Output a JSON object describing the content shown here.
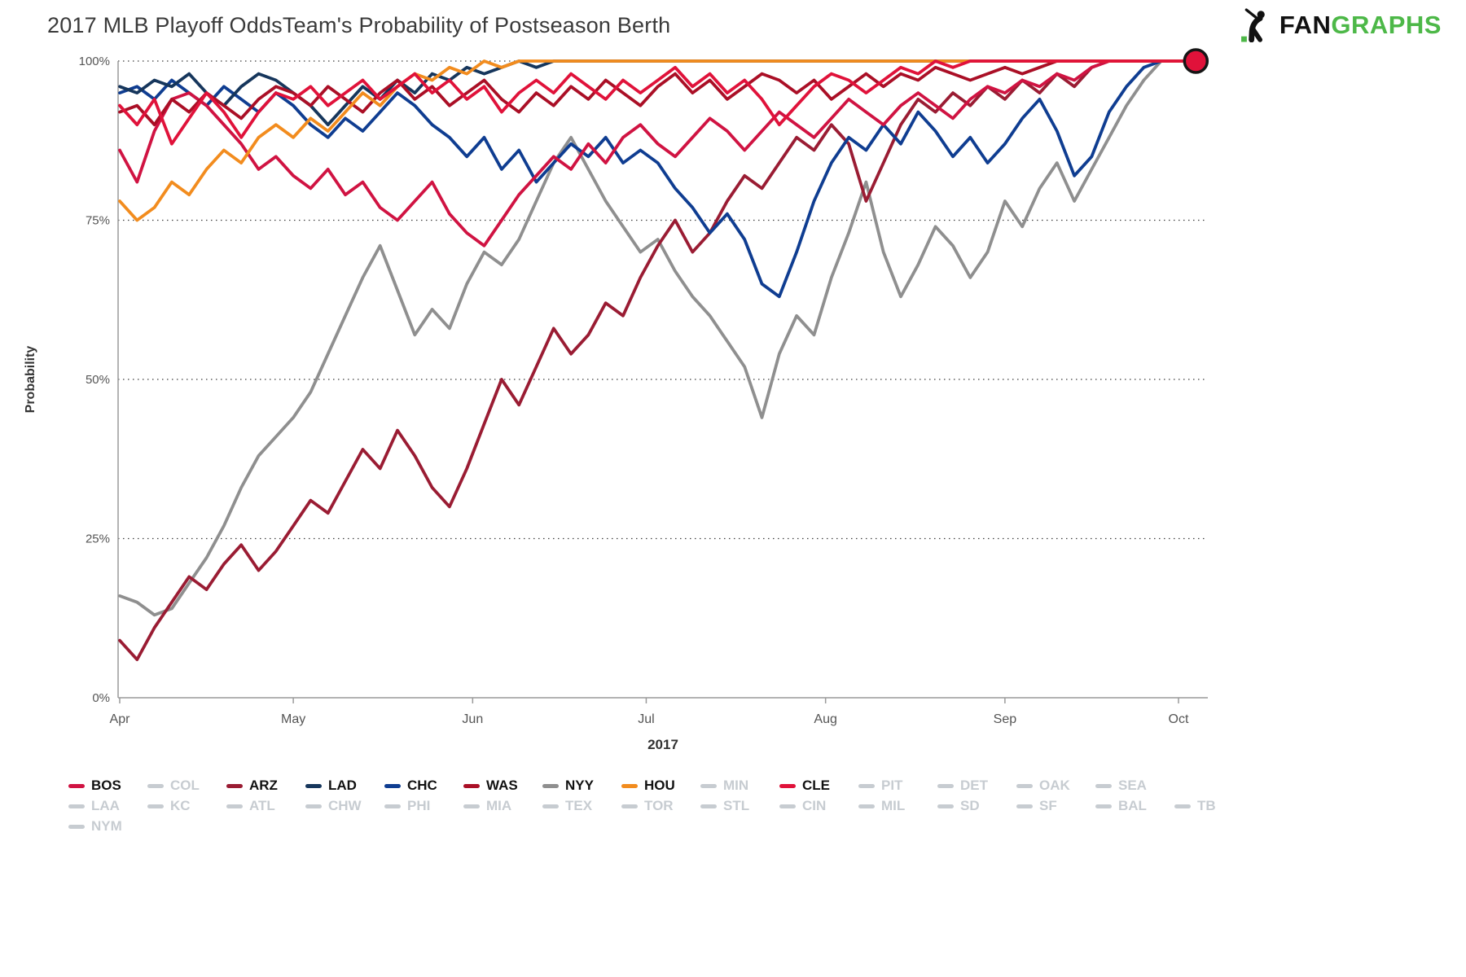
{
  "header": {
    "logo": {
      "fan": "FAN",
      "graphs": "GRAPHS",
      "icon": "fangraphs-batter-icon",
      "colors": {
        "fan": "#111111",
        "graphs": "#4db848"
      }
    }
  },
  "chart_data": {
    "type": "line",
    "title": "2017 MLB Playoff Odds",
    "subtitle": "Team's Probability of Postseason Berth",
    "title_display": "2017 MLB Playoff OddsTeam's Probability of Postseason Berth",
    "xlabel": "2017",
    "ylabel": "Probability",
    "ylim": [
      0,
      100
    ],
    "grid": "dotted-horizontal",
    "legend_position": "bottom",
    "x_unit": "days since Apr 1",
    "sample_interval_days": 3,
    "y_ticks": [
      {
        "value": 0,
        "label": "0%"
      },
      {
        "value": 25,
        "label": "25%"
      },
      {
        "value": 50,
        "label": "50%"
      },
      {
        "value": 75,
        "label": "75%"
      },
      {
        "value": 100,
        "label": "100%"
      }
    ],
    "x_ticks": [
      {
        "day": 0,
        "label": "Apr"
      },
      {
        "day": 30,
        "label": "May"
      },
      {
        "day": 61,
        "label": "Jun"
      },
      {
        "day": 91,
        "label": "Jul"
      },
      {
        "day": 122,
        "label": "Aug"
      },
      {
        "day": 153,
        "label": "Sep"
      },
      {
        "day": 183,
        "label": "Oct"
      }
    ],
    "series": [
      {
        "name": "NYY",
        "color": "#8f8f8f",
        "values": [
          16,
          15,
          13,
          14,
          18,
          22,
          27,
          33,
          38,
          41,
          44,
          48,
          54,
          60,
          66,
          71,
          64,
          57,
          61,
          58,
          65,
          70,
          68,
          72,
          78,
          84,
          88,
          83,
          78,
          74,
          70,
          72,
          67,
          63,
          60,
          56,
          52,
          44,
          54,
          60,
          57,
          66,
          73,
          81,
          70,
          63,
          68,
          74,
          71,
          66,
          70,
          78,
          74,
          80,
          84,
          78,
          83,
          88,
          93,
          97,
          100,
          100,
          100
        ]
      },
      {
        "name": "ARZ",
        "color": "#9a1c33",
        "values": [
          9,
          6,
          11,
          15,
          19,
          17,
          21,
          24,
          20,
          23,
          27,
          31,
          29,
          34,
          39,
          36,
          42,
          38,
          33,
          30,
          36,
          43,
          50,
          46,
          52,
          58,
          54,
          57,
          62,
          60,
          66,
          71,
          75,
          70,
          73,
          78,
          82,
          80,
          84,
          88,
          86,
          90,
          87,
          78,
          84,
          90,
          94,
          92,
          95,
          93,
          96,
          94,
          97,
          95,
          98,
          96,
          99,
          100,
          100,
          100,
          100,
          100,
          100
        ]
      },
      {
        "name": "CHC",
        "color": "#0f3d91",
        "values": [
          95,
          96,
          94,
          97,
          95,
          93,
          96,
          94,
          92,
          95,
          93,
          90,
          88,
          91,
          89,
          92,
          95,
          93,
          90,
          88,
          85,
          88,
          83,
          86,
          81,
          84,
          87,
          85,
          88,
          84,
          86,
          84,
          80,
          77,
          73,
          76,
          72,
          65,
          63,
          70,
          78,
          84,
          88,
          86,
          90,
          87,
          92,
          89,
          85,
          88,
          84,
          87,
          91,
          94,
          89,
          82,
          85,
          92,
          96,
          99,
          100,
          100,
          100
        ]
      },
      {
        "name": "LAD",
        "color": "#16365c",
        "values": [
          96,
          95,
          97,
          96,
          98,
          95,
          93,
          96,
          98,
          97,
          95,
          93,
          90,
          93,
          96,
          94,
          97,
          95,
          98,
          97,
          99,
          98,
          99,
          100,
          99,
          100,
          100,
          100,
          100,
          100,
          100,
          100,
          100,
          100,
          100,
          100,
          100,
          100,
          100,
          100,
          100,
          100,
          100,
          100,
          100,
          100,
          100,
          100,
          100,
          100,
          100,
          100,
          100,
          100,
          100,
          100,
          100,
          100,
          100,
          100,
          100,
          100,
          100
        ]
      },
      {
        "name": "BOS",
        "color": "#d01342",
        "values": [
          86,
          81,
          89,
          94,
          95,
          93,
          90,
          87,
          83,
          85,
          82,
          80,
          83,
          79,
          81,
          77,
          75,
          78,
          81,
          76,
          73,
          71,
          75,
          79,
          82,
          85,
          83,
          87,
          84,
          88,
          90,
          87,
          85,
          88,
          91,
          89,
          86,
          89,
          92,
          90,
          88,
          91,
          94,
          92,
          90,
          93,
          95,
          93,
          91,
          94,
          96,
          95,
          97,
          96,
          98,
          97,
          99,
          100,
          100,
          100,
          100,
          100,
          100
        ]
      },
      {
        "name": "WAS",
        "color": "#aa0f26",
        "values": [
          92,
          93,
          90,
          94,
          92,
          95,
          93,
          91,
          94,
          96,
          95,
          93,
          96,
          94,
          92,
          95,
          97,
          94,
          96,
          93,
          95,
          97,
          94,
          92,
          95,
          93,
          96,
          94,
          97,
          95,
          93,
          96,
          98,
          95,
          97,
          94,
          96,
          98,
          97,
          95,
          97,
          94,
          96,
          98,
          96,
          98,
          97,
          99,
          98,
          97,
          98,
          99,
          98,
          99,
          100,
          100,
          100,
          100,
          100,
          100,
          100,
          100,
          100
        ]
      },
      {
        "name": "HOU",
        "color": "#f28c1e",
        "values": [
          78,
          75,
          77,
          81,
          79,
          83,
          86,
          84,
          88,
          90,
          88,
          91,
          89,
          92,
          95,
          93,
          96,
          98,
          97,
          99,
          98,
          100,
          99,
          100,
          100,
          100,
          100,
          100,
          100,
          100,
          100,
          100,
          100,
          100,
          100,
          100,
          100,
          100,
          100,
          100,
          100,
          100,
          100,
          100,
          100,
          100,
          100,
          100,
          100,
          100,
          100,
          100,
          100,
          100,
          100,
          100,
          100,
          100,
          100,
          100,
          100,
          100,
          100
        ]
      },
      {
        "name": "CLE",
        "color": "#e0123a",
        "end_marker": true,
        "values": [
          93,
          90,
          94,
          87,
          91,
          95,
          92,
          88,
          92,
          95,
          94,
          96,
          93,
          95,
          97,
          94,
          96,
          98,
          95,
          97,
          94,
          96,
          92,
          95,
          97,
          95,
          98,
          96,
          94,
          97,
          95,
          97,
          99,
          96,
          98,
          95,
          97,
          94,
          90,
          93,
          96,
          98,
          97,
          95,
          97,
          99,
          98,
          100,
          99,
          100,
          100,
          100,
          100,
          100,
          100,
          100,
          100,
          100,
          100,
          100,
          100,
          100,
          100
        ]
      }
    ]
  },
  "legend": {
    "inactive_color": "#c7ccd1",
    "active_text_color": "#111111",
    "rows": [
      [
        {
          "label": "BOS",
          "active": true,
          "color": "#d01342"
        },
        {
          "label": "COL",
          "active": false
        },
        {
          "label": "ARZ",
          "active": true,
          "color": "#9a1c33"
        },
        {
          "label": "LAD",
          "active": true,
          "color": "#16365c"
        },
        {
          "label": "CHC",
          "active": true,
          "color": "#0f3d91"
        },
        {
          "label": "WAS",
          "active": true,
          "color": "#aa0f26"
        },
        {
          "label": "NYY",
          "active": true,
          "color": "#8f8f8f"
        },
        {
          "label": "HOU",
          "active": true,
          "color": "#f28c1e"
        },
        {
          "label": "MIN",
          "active": false
        },
        {
          "label": "CLE",
          "active": true,
          "color": "#e0123a"
        },
        {
          "label": "PIT",
          "active": false
        },
        {
          "label": "DET",
          "active": false
        },
        {
          "label": "OAK",
          "active": false
        },
        {
          "label": "SEA",
          "active": false
        }
      ],
      [
        {
          "label": "LAA",
          "active": false
        },
        {
          "label": "KC",
          "active": false
        },
        {
          "label": "ATL",
          "active": false
        },
        {
          "label": "CHW",
          "active": false
        },
        {
          "label": "PHI",
          "active": false
        },
        {
          "label": "MIA",
          "active": false
        },
        {
          "label": "TEX",
          "active": false
        },
        {
          "label": "TOR",
          "active": false
        },
        {
          "label": "STL",
          "active": false
        },
        {
          "label": "CIN",
          "active": false
        },
        {
          "label": "MIL",
          "active": false
        },
        {
          "label": "SD",
          "active": false
        },
        {
          "label": "SF",
          "active": false
        },
        {
          "label": "BAL",
          "active": false
        },
        {
          "label": "TB",
          "active": false
        }
      ],
      [
        {
          "label": "NYM",
          "active": false
        }
      ]
    ]
  }
}
